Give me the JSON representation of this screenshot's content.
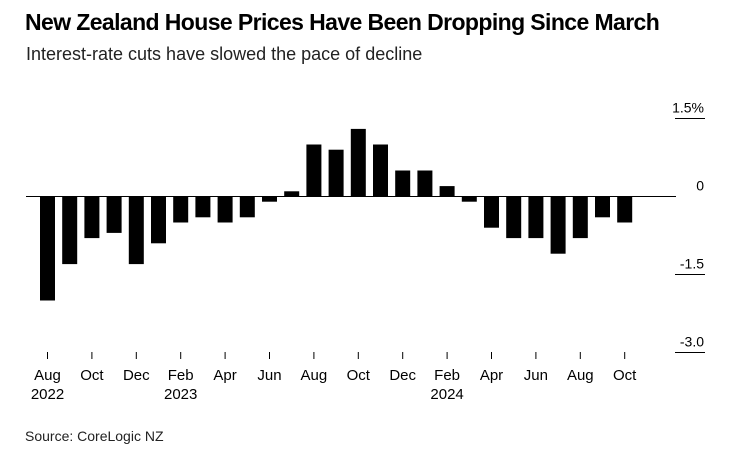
{
  "title": "New Zealand House Prices Have Been Dropping Since March",
  "subtitle": "Interest-rate cuts have slowed the pace of decline",
  "source": "Source: CoreLogic NZ",
  "chart_data": {
    "type": "bar",
    "categories": [
      "Aug 2022",
      "Sep 2022",
      "Oct 2022",
      "Nov 2022",
      "Dec 2022",
      "Jan 2023",
      "Feb 2023",
      "Mar 2023",
      "Apr 2023",
      "May 2023",
      "Jun 2023",
      "Jul 2023",
      "Aug 2023",
      "Sep 2023",
      "Oct 2023",
      "Nov 2023",
      "Dec 2023",
      "Jan 2024",
      "Feb 2024",
      "Mar 2024",
      "Apr 2024",
      "May 2024",
      "Jun 2024",
      "Jul 2024",
      "Aug 2024",
      "Sep 2024",
      "Oct 2024"
    ],
    "values": [
      -2.0,
      -1.3,
      -0.8,
      -0.7,
      -1.3,
      -0.9,
      -0.5,
      -0.4,
      -0.5,
      -0.4,
      -0.1,
      0.1,
      1.0,
      0.9,
      1.3,
      1.0,
      0.5,
      0.5,
      0.2,
      -0.1,
      -0.6,
      -0.8,
      -0.8,
      -1.1,
      -0.8,
      -0.4,
      -0.5
    ],
    "ylim": [
      -3.0,
      1.5
    ],
    "yticks": [
      {
        "value": 1.5,
        "label": "1.5%"
      },
      {
        "value": 0,
        "label": "0"
      },
      {
        "value": -1.5,
        "label": "-1.5"
      },
      {
        "value": -3.0,
        "label": "-3.0"
      }
    ],
    "xtick_labels": [
      {
        "index": 0,
        "month": "Aug",
        "year": "2022"
      },
      {
        "index": 2,
        "month": "Oct",
        "year": ""
      },
      {
        "index": 4,
        "month": "Dec",
        "year": ""
      },
      {
        "index": 6,
        "month": "Feb",
        "year": "2023"
      },
      {
        "index": 8,
        "month": "Apr",
        "year": ""
      },
      {
        "index": 10,
        "month": "Jun",
        "year": ""
      },
      {
        "index": 12,
        "month": "Aug",
        "year": ""
      },
      {
        "index": 14,
        "month": "Oct",
        "year": ""
      },
      {
        "index": 16,
        "month": "Dec",
        "year": ""
      },
      {
        "index": 18,
        "month": "Feb",
        "year": "2024"
      },
      {
        "index": 20,
        "month": "Apr",
        "year": ""
      },
      {
        "index": 22,
        "month": "Jun",
        "year": ""
      },
      {
        "index": 24,
        "month": "Aug",
        "year": ""
      },
      {
        "index": 26,
        "month": "Oct",
        "year": ""
      }
    ],
    "bar_color": "#000000",
    "grid": false
  }
}
